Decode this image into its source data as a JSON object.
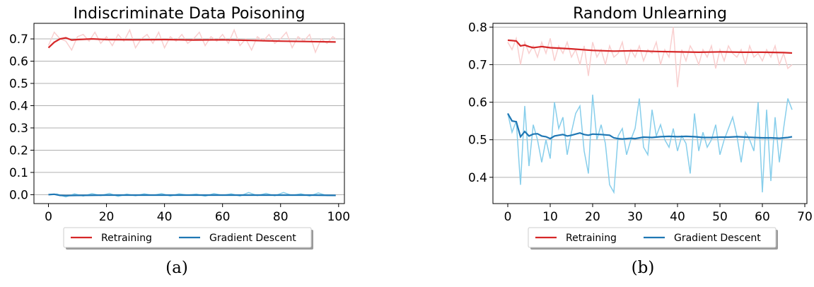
{
  "chart_data": [
    {
      "type": "line",
      "title": "Indiscriminate Data Poisoning",
      "xlabel": "",
      "ylabel": "",
      "xlim": [
        -5,
        102
      ],
      "ylim": [
        -0.04,
        0.77
      ],
      "xticks": [
        0,
        20,
        40,
        60,
        80,
        100
      ],
      "yticks": [
        0.0,
        0.1,
        0.2,
        0.3,
        0.4,
        0.5,
        0.6,
        0.7
      ],
      "grid": "horizontal",
      "legend": "bottom-center",
      "caption": "(a)",
      "series": [
        {
          "name": "Retraining",
          "color": "#d62728",
          "raw_color": "#f9cfcf",
          "smooth_x": [
            0,
            2,
            4,
            6,
            8,
            10,
            15,
            20,
            30,
            40,
            50,
            60,
            70,
            80,
            90,
            99
          ],
          "smooth": [
            0.66,
            0.685,
            0.7,
            0.705,
            0.695,
            0.697,
            0.7,
            0.697,
            0.696,
            0.697,
            0.695,
            0.696,
            0.693,
            0.69,
            0.688,
            0.686
          ],
          "raw_x": [
            0,
            2,
            4,
            6,
            8,
            10,
            12,
            14,
            16,
            18,
            20,
            22,
            24,
            26,
            28,
            30,
            32,
            34,
            36,
            38,
            40,
            42,
            44,
            46,
            48,
            50,
            52,
            54,
            56,
            58,
            60,
            62,
            64,
            66,
            68,
            70,
            72,
            74,
            76,
            78,
            80,
            82,
            84,
            86,
            88,
            90,
            92,
            94,
            96,
            98,
            99
          ],
          "raw": [
            0.67,
            0.73,
            0.7,
            0.69,
            0.65,
            0.71,
            0.72,
            0.69,
            0.73,
            0.68,
            0.71,
            0.67,
            0.72,
            0.69,
            0.74,
            0.66,
            0.7,
            0.72,
            0.68,
            0.73,
            0.66,
            0.71,
            0.69,
            0.72,
            0.68,
            0.7,
            0.73,
            0.67,
            0.71,
            0.69,
            0.72,
            0.68,
            0.74,
            0.67,
            0.7,
            0.65,
            0.71,
            0.69,
            0.72,
            0.68,
            0.7,
            0.73,
            0.66,
            0.71,
            0.69,
            0.72,
            0.64,
            0.7,
            0.68,
            0.71,
            0.7
          ]
        },
        {
          "name": "Gradient Descent",
          "color": "#1f77b4",
          "raw_color": "#87ceeb",
          "smooth_x": [
            0,
            2,
            4,
            6,
            10,
            20,
            30,
            40,
            50,
            60,
            70,
            80,
            90,
            99
          ],
          "smooth": [
            0.0,
            0.002,
            -0.003,
            -0.004,
            -0.003,
            -0.002,
            -0.002,
            -0.002,
            -0.002,
            -0.002,
            -0.002,
            -0.002,
            -0.002,
            -0.003
          ],
          "raw_x": [
            0,
            3,
            6,
            9,
            12,
            15,
            18,
            21,
            24,
            27,
            30,
            33,
            36,
            39,
            42,
            45,
            48,
            51,
            54,
            57,
            60,
            63,
            66,
            69,
            72,
            75,
            78,
            81,
            84,
            87,
            90,
            93,
            96,
            99
          ],
          "raw": [
            0.0,
            0.003,
            -0.01,
            0.004,
            -0.006,
            0.005,
            -0.004,
            0.006,
            -0.008,
            0.003,
            -0.005,
            0.004,
            -0.003,
            0.005,
            -0.006,
            0.004,
            -0.002,
            0.003,
            -0.007,
            0.005,
            -0.003,
            0.004,
            -0.006,
            0.01,
            -0.004,
            0.006,
            -0.005,
            0.01,
            -0.003,
            0.004,
            -0.006,
            0.008,
            -0.004,
            -0.004
          ]
        }
      ]
    },
    {
      "type": "line",
      "title": "Random Unlearning",
      "xlabel": "",
      "ylabel": "",
      "xlim": [
        -3.5,
        70.5
      ],
      "ylim": [
        0.33,
        0.81
      ],
      "xticks": [
        0,
        10,
        20,
        30,
        40,
        50,
        60,
        70
      ],
      "yticks": [
        0.4,
        0.5,
        0.6,
        0.7,
        0.8
      ],
      "grid": "horizontal",
      "legend": "bottom-center",
      "caption": "(b)",
      "series": [
        {
          "name": "Retraining",
          "color": "#d62728",
          "raw_color": "#f9cfcf",
          "smooth_x": [
            0,
            1,
            2,
            3,
            4,
            5,
            6,
            8,
            10,
            12,
            15,
            20,
            25,
            30,
            35,
            40,
            45,
            50,
            55,
            60,
            65,
            67
          ],
          "smooth": [
            0.765,
            0.764,
            0.763,
            0.75,
            0.752,
            0.748,
            0.745,
            0.748,
            0.745,
            0.744,
            0.742,
            0.738,
            0.736,
            0.737,
            0.735,
            0.734,
            0.733,
            0.734,
            0.733,
            0.733,
            0.732,
            0.731
          ],
          "raw_x": [
            0,
            1,
            2,
            3,
            4,
            5,
            6,
            7,
            8,
            9,
            10,
            11,
            12,
            13,
            14,
            15,
            16,
            17,
            18,
            19,
            20,
            21,
            22,
            23,
            24,
            25,
            26,
            27,
            28,
            29,
            30,
            31,
            32,
            33,
            34,
            35,
            36,
            37,
            38,
            39,
            40,
            41,
            42,
            43,
            44,
            45,
            46,
            47,
            48,
            49,
            50,
            51,
            52,
            53,
            54,
            55,
            56,
            57,
            58,
            59,
            60,
            61,
            62,
            63,
            64,
            65,
            66,
            67
          ],
          "raw": [
            0.76,
            0.74,
            0.77,
            0.7,
            0.76,
            0.73,
            0.75,
            0.72,
            0.76,
            0.73,
            0.77,
            0.71,
            0.75,
            0.73,
            0.76,
            0.72,
            0.74,
            0.7,
            0.75,
            0.67,
            0.76,
            0.72,
            0.74,
            0.7,
            0.75,
            0.72,
            0.73,
            0.76,
            0.7,
            0.74,
            0.72,
            0.75,
            0.71,
            0.74,
            0.73,
            0.76,
            0.7,
            0.74,
            0.72,
            0.8,
            0.64,
            0.74,
            0.71,
            0.75,
            0.73,
            0.7,
            0.74,
            0.72,
            0.75,
            0.69,
            0.74,
            0.71,
            0.75,
            0.73,
            0.72,
            0.74,
            0.7,
            0.75,
            0.72,
            0.73,
            0.71,
            0.74,
            0.72,
            0.75,
            0.7,
            0.73,
            0.69,
            0.7
          ]
        },
        {
          "name": "Gradient Descent",
          "color": "#1f77b4",
          "raw_color": "#87ceeb",
          "smooth_x": [
            0,
            1,
            2,
            3,
            4,
            5,
            6,
            7,
            8,
            9,
            10,
            11,
            12,
            13,
            14,
            15,
            16,
            17,
            18,
            19,
            20,
            22,
            24,
            25,
            26,
            27,
            28,
            29,
            30,
            32,
            34,
            36,
            38,
            40,
            42,
            44,
            46,
            48,
            50,
            52,
            54,
            56,
            58,
            60,
            62,
            64,
            66,
            67
          ],
          "smooth": [
            0.57,
            0.55,
            0.548,
            0.508,
            0.522,
            0.51,
            0.515,
            0.516,
            0.51,
            0.508,
            0.503,
            0.51,
            0.512,
            0.514,
            0.51,
            0.512,
            0.515,
            0.518,
            0.514,
            0.512,
            0.515,
            0.514,
            0.512,
            0.505,
            0.503,
            0.502,
            0.503,
            0.504,
            0.503,
            0.507,
            0.506,
            0.508,
            0.509,
            0.508,
            0.509,
            0.508,
            0.506,
            0.506,
            0.507,
            0.507,
            0.508,
            0.507,
            0.506,
            0.505,
            0.505,
            0.504,
            0.506,
            0.508
          ],
          "raw_x": [
            0,
            1,
            2,
            3,
            4,
            5,
            6,
            7,
            8,
            9,
            10,
            11,
            12,
            13,
            14,
            15,
            16,
            17,
            18,
            19,
            20,
            21,
            22,
            23,
            24,
            25,
            26,
            27,
            28,
            29,
            30,
            31,
            32,
            33,
            34,
            35,
            36,
            37,
            38,
            39,
            40,
            41,
            42,
            43,
            44,
            45,
            46,
            47,
            48,
            49,
            50,
            51,
            52,
            53,
            54,
            55,
            56,
            57,
            58,
            59,
            60,
            61,
            62,
            63,
            64,
            65,
            66,
            67
          ],
          "raw": [
            0.57,
            0.52,
            0.55,
            0.38,
            0.59,
            0.43,
            0.54,
            0.5,
            0.44,
            0.5,
            0.45,
            0.6,
            0.53,
            0.56,
            0.46,
            0.52,
            0.57,
            0.59,
            0.47,
            0.41,
            0.62,
            0.5,
            0.54,
            0.49,
            0.38,
            0.36,
            0.51,
            0.53,
            0.46,
            0.5,
            0.53,
            0.61,
            0.48,
            0.46,
            0.58,
            0.51,
            0.54,
            0.5,
            0.48,
            0.53,
            0.47,
            0.51,
            0.49,
            0.41,
            0.57,
            0.47,
            0.52,
            0.48,
            0.5,
            0.54,
            0.46,
            0.5,
            0.53,
            0.56,
            0.51,
            0.44,
            0.52,
            0.5,
            0.47,
            0.6,
            0.36,
            0.58,
            0.39,
            0.56,
            0.44,
            0.53,
            0.61,
            0.58
          ]
        }
      ]
    }
  ]
}
